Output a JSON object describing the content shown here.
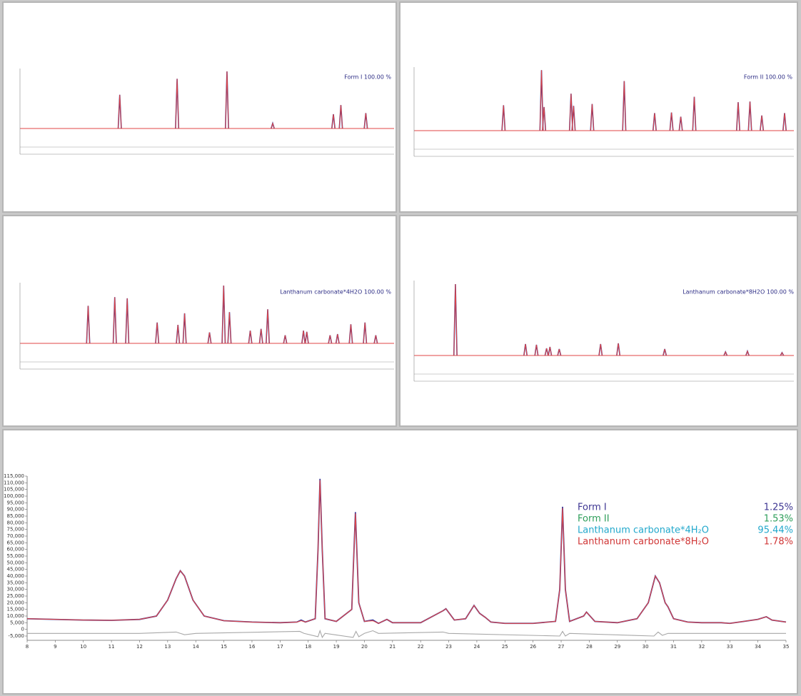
{
  "chart_data": [
    {
      "type": "peaks",
      "annotation": "Form I 100.00 %",
      "annotation_color": "#2d2d85",
      "observed_color": "#3b3b9a",
      "calc_color": "#e04545",
      "xlim": [
        0,
        45
      ],
      "ylim": [
        0,
        10500
      ],
      "x": [
        12.0,
        18.9,
        24.9,
        30.4,
        37.7,
        38.6,
        41.6
      ],
      "values": [
        5900,
        8700,
        10000,
        900,
        2500,
        4100,
        2700
      ]
    },
    {
      "type": "peaks",
      "annotation": "Form II 100.00 %",
      "annotation_color": "#2d2d85",
      "observed_color": "#3b3b9a",
      "calc_color": "#e04545",
      "xlim": [
        0,
        45
      ],
      "ylim": [
        0,
        10500
      ],
      "x": [
        10.6,
        15.1,
        15.4,
        18.6,
        18.9,
        21.1,
        24.9,
        28.5,
        30.5,
        31.6,
        33.2,
        38.4,
        39.8,
        41.2,
        43.9
      ],
      "values": [
        4200,
        10000,
        3900,
        6100,
        4100,
        4400,
        8200,
        2900,
        3000,
        2300,
        5600,
        4700,
        4800,
        2500,
        2900
      ]
    },
    {
      "type": "peaks",
      "annotation": "Lanthanum carbonate*4H2O 100.00 %",
      "annotation_color": "#2d2d85",
      "observed_color": "#3b3b9a",
      "calc_color": "#e04545",
      "xlim": [
        0,
        45
      ],
      "ylim": [
        0,
        10500
      ],
      "x": [
        8.2,
        11.4,
        12.9,
        16.5,
        19.0,
        19.8,
        22.8,
        24.5,
        25.2,
        27.7,
        29.0,
        29.8,
        31.9,
        34.1,
        34.5,
        37.3,
        38.2,
        39.8,
        41.5,
        42.8
      ],
      "values": [
        6500,
        8000,
        7800,
        3600,
        3200,
        5200,
        1900,
        10000,
        5400,
        2200,
        2500,
        5900,
        1400,
        2200,
        2000,
        1400,
        1600,
        3300,
        3600,
        1400
      ]
    },
    {
      "type": "peaks",
      "annotation": "Lanthanum carbonate*8H2O 100.00 %",
      "annotation_color": "#2d2d85",
      "observed_color": "#3b3b9a",
      "calc_color": "#e04545",
      "xlim": [
        0,
        45
      ],
      "ylim": [
        0,
        10500
      ],
      "x": [
        4.9,
        13.2,
        14.5,
        15.7,
        16.1,
        17.2,
        22.1,
        24.2,
        29.7,
        36.9,
        39.5,
        43.6
      ],
      "values": [
        10000,
        1600,
        1500,
        1000,
        1200,
        900,
        1600,
        1700,
        900,
        500,
        600,
        400
      ]
    },
    {
      "type": "line",
      "xlim": [
        8,
        35
      ],
      "xticks": [
        8,
        9,
        10,
        11,
        12,
        13,
        14,
        15,
        16,
        17,
        18,
        19,
        20,
        21,
        22,
        23,
        24,
        25,
        26,
        27,
        28,
        29,
        30,
        31,
        32,
        33,
        34,
        35
      ],
      "ylim": [
        -5000,
        115000
      ],
      "yticks": [
        {
          "value": -5000,
          "label": "-5,000"
        },
        0,
        {
          "value": 5000,
          "label": "5,000"
        },
        {
          "value": 10000,
          "label": "10,000"
        },
        {
          "value": 15000,
          "label": "15,000"
        },
        {
          "value": 20000,
          "label": "20,000"
        },
        {
          "value": 25000,
          "label": "25,000"
        },
        {
          "value": 30000,
          "label": "30,000"
        },
        {
          "value": 35000,
          "label": "35,000"
        },
        {
          "value": 40000,
          "label": "40,000"
        },
        {
          "value": 45000,
          "label": "45,000"
        },
        {
          "value": 50000,
          "label": "50,000"
        },
        {
          "value": 55000,
          "label": "55,000"
        },
        {
          "value": 60000,
          "label": "60,000"
        },
        {
          "value": 65000,
          "label": "65,000"
        },
        {
          "value": 70000,
          "label": "70,000"
        },
        {
          "value": 75000,
          "label": "75,000"
        },
        {
          "value": 80000,
          "label": "80,000"
        },
        {
          "value": 85000,
          "label": "85,000"
        },
        {
          "value": 90000,
          "label": "90,000"
        },
        {
          "value": 95000,
          "label": "95,000"
        },
        {
          "value": 100000,
          "label": "100,000"
        },
        {
          "value": 105000,
          "label": "105,000"
        },
        {
          "value": 110000,
          "label": "110,000"
        },
        {
          "value": 115000,
          "label": "115,000"
        }
      ],
      "x": [
        8,
        10,
        11,
        12,
        12.6,
        13,
        13.3,
        13.45,
        13.6,
        13.9,
        14.3,
        15,
        16,
        17,
        17.6,
        17.75,
        17.9,
        18.25,
        18.35,
        18.42,
        18.5,
        18.6,
        19,
        19.55,
        19.68,
        19.8,
        20,
        20.3,
        20.5,
        20.8,
        21,
        22,
        22.8,
        22.9,
        23.2,
        23.6,
        23.9,
        24.1,
        24.3,
        24.5,
        25,
        26,
        26.8,
        26.95,
        27.05,
        27.15,
        27.3,
        27.8,
        27.9,
        28.2,
        29,
        29.7,
        30.1,
        30.35,
        30.5,
        30.7,
        30.8,
        31,
        31.5,
        32,
        32.7,
        33,
        33.5,
        34,
        34.3,
        34.5,
        35
      ],
      "series": [
        {
          "color": "#3b3b9a",
          "values": [
            8000,
            7000,
            6800,
            7500,
            10000,
            22000,
            38000,
            44000,
            40000,
            22000,
            10000,
            6500,
            5500,
            5000,
            5500,
            7000,
            5500,
            8000,
            60000,
            113000,
            60000,
            8000,
            6000,
            15000,
            88000,
            20000,
            6000,
            7000,
            4500,
            7500,
            5000,
            5000,
            14000,
            15500,
            7000,
            8000,
            18000,
            12000,
            9000,
            5500,
            4500,
            4500,
            6000,
            30000,
            92000,
            30000,
            6000,
            10000,
            13000,
            6000,
            5000,
            8000,
            20000,
            40000,
            35000,
            20000,
            17000,
            8000,
            5500,
            5000,
            5000,
            4500,
            6000,
            7500,
            9500,
            7000,
            5500
          ]
        },
        {
          "color": "#e04545",
          "values": [
            8000,
            7000,
            6800,
            7500,
            10000,
            22000,
            38000,
            44000,
            40000,
            22000,
            10000,
            6500,
            5500,
            5000,
            5500,
            6500,
            5500,
            8000,
            60000,
            112000,
            60000,
            8000,
            6000,
            15000,
            87000,
            20000,
            6000,
            6500,
            4500,
            7500,
            5000,
            5000,
            14000,
            15500,
            7000,
            8000,
            18000,
            12000,
            9000,
            5500,
            4500,
            4500,
            6000,
            30000,
            91000,
            30000,
            6000,
            10000,
            13000,
            6000,
            5000,
            8000,
            20000,
            40000,
            35000,
            20000,
            17000,
            8000,
            5500,
            5000,
            5000,
            4500,
            6000,
            7500,
            9500,
            7000,
            5500
          ]
        },
        {
          "color": "#a8a8a8",
          "x": [
            8,
            12,
            13.3,
            13.6,
            14,
            17.7,
            17.85,
            18.35,
            18.42,
            18.5,
            18.6,
            19.6,
            19.7,
            19.8,
            20,
            20.3,
            20.5,
            22.8,
            23,
            26.95,
            27.05,
            27.15,
            27.3,
            30.3,
            30.45,
            30.6,
            30.8,
            35
          ],
          "values": [
            -3000,
            -3000,
            -2000,
            -4000,
            -3000,
            -1500,
            -3000,
            -5500,
            -1000,
            -6000,
            -3000,
            -6000,
            -1500,
            -5500,
            -3000,
            -1000,
            -3000,
            -2000,
            -3000,
            -5000,
            -1500,
            -5000,
            -3000,
            -5000,
            -2000,
            -4500,
            -3000,
            -3000
          ]
        }
      ],
      "legend": [
        {
          "label": "Form I",
          "color": "#3d3592",
          "value": 1.25,
          "value_label": "1.25%"
        },
        {
          "label": "Form II",
          "color": "#2e9e5a",
          "value": 1.53,
          "value_label": "1.53%"
        },
        {
          "label": "Lanthanum carbonate*4H₂O",
          "color": "#22a8cc",
          "value": 95.44,
          "value_label": "95.44%"
        },
        {
          "label": "Lanthanum carbonate*8H₂O",
          "color": "#d03535",
          "value": 1.78,
          "value_label": "1.78%"
        }
      ]
    }
  ]
}
